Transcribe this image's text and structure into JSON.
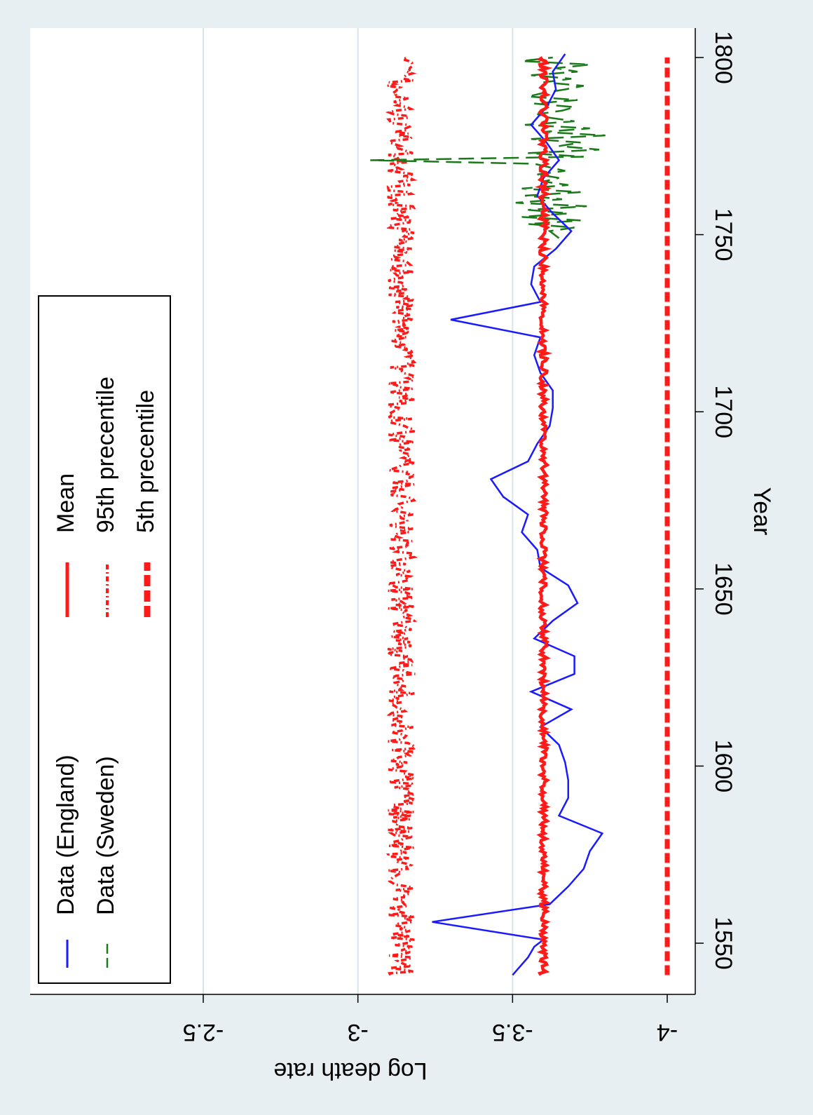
{
  "chart_data": {
    "type": "line",
    "orientation": "rotated 90 degrees clockwise (x axis runs vertically on the right side, y axis along the bottom)",
    "title": "",
    "xlabel": "Year",
    "ylabel": "Log death rate",
    "xlim": [
      1535,
      1805
    ],
    "ylim": [
      -4.05,
      -2.0
    ],
    "x_ticks": [
      1550,
      1600,
      1650,
      1700,
      1750,
      1800
    ],
    "y_ticks": [
      -4,
      -3.5,
      -3,
      -2.5
    ],
    "x_tick_labels": [
      "1550",
      "1600",
      "1650",
      "1700",
      "1750",
      "1800"
    ],
    "y_tick_labels": [
      "-4",
      "-3.5",
      "-3",
      "-2.5"
    ],
    "grid": "horizontal lines at y ticks",
    "legend_position": "upper-left (inside plot)",
    "colors": {
      "background": "#e8eff2",
      "plot_area": "#ffffff",
      "grid": "#d8e4e8",
      "england": "#1a1aff",
      "sweden": "#1a7a1a",
      "simulation": "#ff1a1a"
    },
    "series": [
      {
        "name": "Data (England)",
        "style": "solid",
        "x": [
          1541,
          1546,
          1549,
          1551,
          1556,
          1561,
          1566,
          1571,
          1576,
          1581,
          1586,
          1591,
          1596,
          1601,
          1606,
          1611,
          1616,
          1621,
          1626,
          1631,
          1636,
          1641,
          1646,
          1651,
          1656,
          1661,
          1666,
          1671,
          1676,
          1681,
          1686,
          1691,
          1696,
          1701,
          1706,
          1711,
          1716,
          1721,
          1726,
          1731,
          1736,
          1741,
          1746,
          1751,
          1756,
          1761,
          1766,
          1771,
          1776,
          1781,
          1786,
          1791,
          1796,
          1801
        ],
        "values": [
          -3.5,
          -3.55,
          -3.57,
          -3.6,
          -3.24,
          -3.62,
          -3.68,
          -3.73,
          -3.75,
          -3.79,
          -3.65,
          -3.68,
          -3.68,
          -3.67,
          -3.65,
          -3.59,
          -3.69,
          -3.56,
          -3.7,
          -3.7,
          -3.57,
          -3.63,
          -3.71,
          -3.68,
          -3.59,
          -3.58,
          -3.53,
          -3.55,
          -3.47,
          -3.43,
          -3.55,
          -3.58,
          -3.62,
          -3.63,
          -3.63,
          -3.59,
          -3.57,
          -3.59,
          -3.3,
          -3.59,
          -3.56,
          -3.57,
          -3.64,
          -3.69,
          -3.63,
          -3.58,
          -3.6,
          -3.65,
          -3.61,
          -3.56,
          -3.61,
          -3.64,
          -3.63,
          -3.67
        ]
      },
      {
        "name": "Data (Sweden)",
        "style": "dashed",
        "x": [
          1749,
          1751,
          1752,
          1753,
          1754,
          1755,
          1756,
          1757,
          1758,
          1759,
          1760,
          1761,
          1762,
          1763,
          1764,
          1765,
          1766,
          1767,
          1768,
          1769,
          1770,
          1771,
          1772,
          1773,
          1774,
          1775,
          1776,
          1777,
          1778,
          1779,
          1780,
          1781,
          1782,
          1783,
          1784,
          1785,
          1786,
          1787,
          1788,
          1789,
          1790,
          1791,
          1792,
          1793,
          1794,
          1795,
          1796,
          1797,
          1798,
          1799,
          1800
        ],
        "values": [
          -3.65,
          -3.62,
          -3.7,
          -3.55,
          -3.72,
          -3.53,
          -3.68,
          -3.55,
          -3.74,
          -3.51,
          -3.66,
          -3.54,
          -3.72,
          -3.53,
          -3.68,
          -3.6,
          -3.65,
          -3.58,
          -3.67,
          -3.62,
          -3.57,
          -3.04,
          -3.73,
          -3.55,
          -3.78,
          -3.65,
          -3.72,
          -3.56,
          -3.8,
          -3.6,
          -3.75,
          -3.54,
          -3.7,
          -3.62,
          -3.58,
          -3.66,
          -3.7,
          -3.57,
          -3.71,
          -3.55,
          -3.6,
          -3.67,
          -3.73,
          -3.6,
          -3.69,
          -3.56,
          -3.71,
          -3.64,
          -3.75,
          -3.53,
          -3.63
        ]
      },
      {
        "name": "Mean",
        "style": "solid-thick",
        "x_start": 1541,
        "x_end": 1800,
        "level": -3.6,
        "jitter": 0.012,
        "key_values": [
          -3.6,
          -3.58,
          -3.6,
          -3.6,
          -3.62,
          -3.59,
          -3.61,
          -3.6,
          -3.59,
          -3.61,
          -3.6,
          -3.59,
          -3.6,
          -3.58,
          -3.6,
          -3.6
        ]
      },
      {
        "name": "95th precentile",
        "style": "dash-dot",
        "x_start": 1541,
        "x_end": 1800,
        "level": -3.14,
        "jitter": 0.045
      },
      {
        "name": "5th precentile",
        "style": "long-dash-thick",
        "x_start": 1541,
        "x_end": 1800,
        "level": -4.0,
        "jitter": 0.0
      }
    ]
  }
}
